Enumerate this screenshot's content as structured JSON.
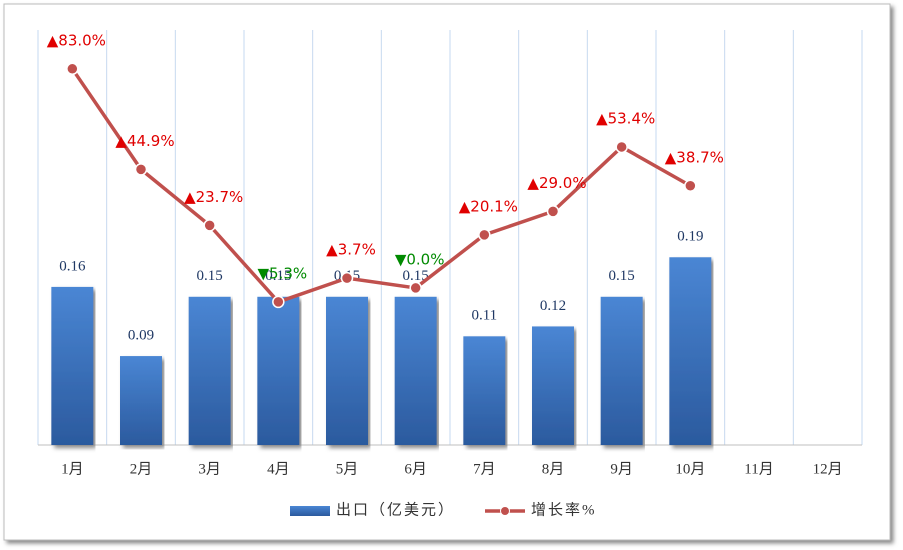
{
  "chart_data": {
    "type": "bar_line",
    "categories": [
      "1月",
      "2月",
      "3月",
      "4月",
      "5月",
      "6月",
      "7月",
      "8月",
      "9月",
      "10月",
      "11月",
      "12月"
    ],
    "series": [
      {
        "name": "出口（亿美元）",
        "type": "bar",
        "color": "#3a6fba",
        "values": [
          0.16,
          0.09,
          0.15,
          0.15,
          0.15,
          0.15,
          0.11,
          0.12,
          0.15,
          0.19,
          null,
          null
        ]
      },
      {
        "name": "增长率%",
        "type": "line",
        "axis": "y2",
        "color": "#c0504d",
        "values": [
          83.0,
          44.9,
          23.7,
          -5.3,
          3.7,
          0.0,
          20.1,
          29.0,
          53.4,
          38.7,
          null,
          null
        ],
        "value_labels": [
          "▲83.0%",
          "▲44.9%",
          "▲23.7%",
          "▼5.3%",
          "▲3.7%",
          "▼0.0%",
          "▲20.1%",
          "▲29.0%",
          "▲53.4%",
          "▲38.7%",
          null,
          null
        ]
      }
    ],
    "ylim": [
      0,
      0.42
    ],
    "y2lim": [
      -59.5,
      97.7
    ],
    "legend": "bottom"
  }
}
